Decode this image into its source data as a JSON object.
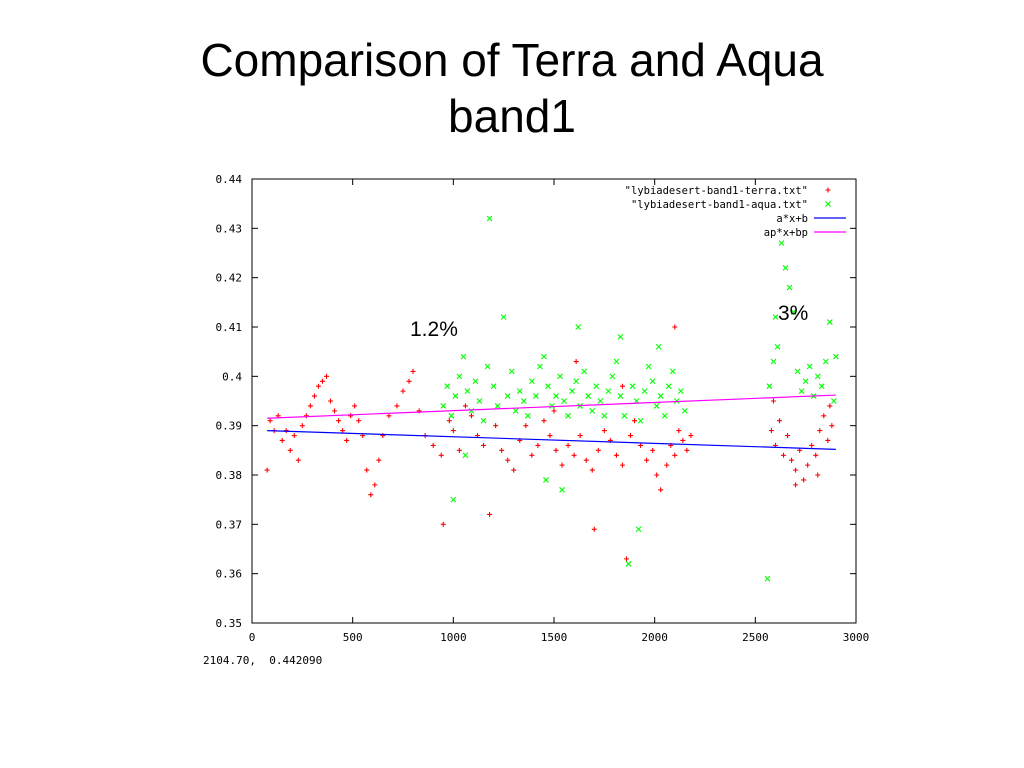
{
  "slide": {
    "title_line1": "Comparison of Terra and Aqua",
    "title_line2": "band1",
    "annotation_left": "1.2%",
    "annotation_right": "3%",
    "status_readout": "2104.70,  0.442090"
  },
  "colors": {
    "terra": "#ff0000",
    "aqua": "#00ff00",
    "fit_terra": "#0000ff",
    "fit_aqua": "#ff00ff",
    "axis": "#000000"
  },
  "chart_data": {
    "type": "scatter",
    "title": "",
    "xlabel": "",
    "ylabel": "",
    "xlim": [
      0,
      3000
    ],
    "ylim": [
      0.35,
      0.44
    ],
    "x_ticks": [
      0,
      500,
      1000,
      1500,
      2000,
      2500,
      3000
    ],
    "y_ticks": [
      0.35,
      0.36,
      0.37,
      0.38,
      0.39,
      0.4,
      0.41,
      0.42,
      0.43,
      0.44
    ],
    "x_tick_labels": [
      "0",
      "500",
      "1000",
      "1500",
      "2000",
      "2500",
      "3000"
    ],
    "y_tick_labels": [
      "0.35",
      "0.36",
      "0.37",
      "0.38",
      "0.39",
      "0.4",
      "0.41",
      "0.42",
      "0.43",
      "0.44"
    ],
    "grid": false,
    "legend_position": "top-right",
    "series": [
      {
        "name": "\"lybiadesert-band1-terra.txt\"",
        "marker": "+",
        "color": "#ff0000",
        "points": [
          [
            75,
            0.381
          ],
          [
            90,
            0.391
          ],
          [
            110,
            0.389
          ],
          [
            130,
            0.392
          ],
          [
            150,
            0.387
          ],
          [
            170,
            0.389
          ],
          [
            190,
            0.385
          ],
          [
            210,
            0.388
          ],
          [
            230,
            0.383
          ],
          [
            250,
            0.39
          ],
          [
            270,
            0.392
          ],
          [
            290,
            0.394
          ],
          [
            310,
            0.396
          ],
          [
            330,
            0.398
          ],
          [
            350,
            0.399
          ],
          [
            370,
            0.4
          ],
          [
            390,
            0.395
          ],
          [
            410,
            0.393
          ],
          [
            430,
            0.391
          ],
          [
            450,
            0.389
          ],
          [
            470,
            0.387
          ],
          [
            490,
            0.392
          ],
          [
            510,
            0.394
          ],
          [
            530,
            0.391
          ],
          [
            550,
            0.388
          ],
          [
            570,
            0.381
          ],
          [
            590,
            0.376
          ],
          [
            610,
            0.378
          ],
          [
            630,
            0.383
          ],
          [
            650,
            0.388
          ],
          [
            680,
            0.392
          ],
          [
            720,
            0.394
          ],
          [
            750,
            0.397
          ],
          [
            780,
            0.399
          ],
          [
            800,
            0.401
          ],
          [
            830,
            0.393
          ],
          [
            860,
            0.388
          ],
          [
            900,
            0.386
          ],
          [
            940,
            0.384
          ],
          [
            950,
            0.37
          ],
          [
            980,
            0.391
          ],
          [
            1000,
            0.389
          ],
          [
            1030,
            0.385
          ],
          [
            1060,
            0.394
          ],
          [
            1090,
            0.392
          ],
          [
            1120,
            0.388
          ],
          [
            1150,
            0.386
          ],
          [
            1180,
            0.372
          ],
          [
            1210,
            0.39
          ],
          [
            1240,
            0.385
          ],
          [
            1270,
            0.383
          ],
          [
            1300,
            0.381
          ],
          [
            1330,
            0.387
          ],
          [
            1360,
            0.39
          ],
          [
            1390,
            0.384
          ],
          [
            1420,
            0.386
          ],
          [
            1450,
            0.391
          ],
          [
            1480,
            0.388
          ],
          [
            1510,
            0.385
          ],
          [
            1540,
            0.382
          ],
          [
            1570,
            0.386
          ],
          [
            1600,
            0.384
          ],
          [
            1630,
            0.388
          ],
          [
            1660,
            0.383
          ],
          [
            1690,
            0.381
          ],
          [
            1700,
            0.369
          ],
          [
            1720,
            0.385
          ],
          [
            1750,
            0.389
          ],
          [
            1780,
            0.387
          ],
          [
            1810,
            0.384
          ],
          [
            1840,
            0.382
          ],
          [
            1860,
            0.363
          ],
          [
            1880,
            0.388
          ],
          [
            1900,
            0.391
          ],
          [
            1930,
            0.386
          ],
          [
            1960,
            0.383
          ],
          [
            1990,
            0.385
          ],
          [
            2010,
            0.38
          ],
          [
            2030,
            0.377
          ],
          [
            2060,
            0.382
          ],
          [
            2080,
            0.386
          ],
          [
            2100,
            0.384
          ],
          [
            2120,
            0.389
          ],
          [
            2140,
            0.387
          ],
          [
            2160,
            0.385
          ],
          [
            2180,
            0.388
          ],
          [
            2100,
            0.41
          ],
          [
            1840,
            0.398
          ],
          [
            1610,
            0.403
          ],
          [
            1500,
            0.393
          ],
          [
            2580,
            0.389
          ],
          [
            2600,
            0.386
          ],
          [
            2620,
            0.391
          ],
          [
            2640,
            0.384
          ],
          [
            2660,
            0.388
          ],
          [
            2680,
            0.383
          ],
          [
            2700,
            0.381
          ],
          [
            2720,
            0.385
          ],
          [
            2740,
            0.379
          ],
          [
            2760,
            0.382
          ],
          [
            2780,
            0.386
          ],
          [
            2800,
            0.384
          ],
          [
            2820,
            0.389
          ],
          [
            2840,
            0.392
          ],
          [
            2860,
            0.387
          ],
          [
            2880,
            0.39
          ],
          [
            2590,
            0.395
          ],
          [
            2700,
            0.378
          ],
          [
            2810,
            0.38
          ],
          [
            2870,
            0.394
          ]
        ]
      },
      {
        "name": "\"lybiadesert-band1-aqua.txt\"",
        "marker": "x",
        "color": "#00ff00",
        "points": [
          [
            950,
            0.394
          ],
          [
            970,
            0.398
          ],
          [
            990,
            0.392
          ],
          [
            1010,
            0.396
          ],
          [
            1030,
            0.4
          ],
          [
            1050,
            0.404
          ],
          [
            1070,
            0.397
          ],
          [
            1090,
            0.393
          ],
          [
            1110,
            0.399
          ],
          [
            1130,
            0.395
          ],
          [
            1150,
            0.391
          ],
          [
            1170,
            0.402
          ],
          [
            1180,
            0.432
          ],
          [
            1200,
            0.398
          ],
          [
            1220,
            0.394
          ],
          [
            1250,
            0.412
          ],
          [
            1270,
            0.396
          ],
          [
            1290,
            0.401
          ],
          [
            1310,
            0.393
          ],
          [
            1330,
            0.397
          ],
          [
            1350,
            0.395
          ],
          [
            1370,
            0.392
          ],
          [
            1390,
            0.399
          ],
          [
            1410,
            0.396
          ],
          [
            1430,
            0.402
          ],
          [
            1450,
            0.404
          ],
          [
            1470,
            0.398
          ],
          [
            1490,
            0.394
          ],
          [
            1510,
            0.396
          ],
          [
            1530,
            0.4
          ],
          [
            1550,
            0.395
          ],
          [
            1570,
            0.392
          ],
          [
            1590,
            0.397
          ],
          [
            1610,
            0.399
          ],
          [
            1630,
            0.394
          ],
          [
            1650,
            0.401
          ],
          [
            1670,
            0.396
          ],
          [
            1690,
            0.393
          ],
          [
            1710,
            0.398
          ],
          [
            1730,
            0.395
          ],
          [
            1750,
            0.392
          ],
          [
            1770,
            0.397
          ],
          [
            1790,
            0.4
          ],
          [
            1810,
            0.403
          ],
          [
            1830,
            0.396
          ],
          [
            1850,
            0.392
          ],
          [
            1870,
            0.362
          ],
          [
            1890,
            0.398
          ],
          [
            1910,
            0.395
          ],
          [
            1930,
            0.391
          ],
          [
            1950,
            0.397
          ],
          [
            1970,
            0.402
          ],
          [
            1990,
            0.399
          ],
          [
            2010,
            0.394
          ],
          [
            2030,
            0.396
          ],
          [
            2050,
            0.392
          ],
          [
            2070,
            0.398
          ],
          [
            2090,
            0.401
          ],
          [
            2110,
            0.395
          ],
          [
            2130,
            0.397
          ],
          [
            2150,
            0.393
          ],
          [
            1000,
            0.375
          ],
          [
            1060,
            0.384
          ],
          [
            1460,
            0.379
          ],
          [
            1540,
            0.377
          ],
          [
            1920,
            0.369
          ],
          [
            2020,
            0.406
          ],
          [
            1620,
            0.41
          ],
          [
            1830,
            0.408
          ],
          [
            2560,
            0.359
          ],
          [
            2570,
            0.398
          ],
          [
            2590,
            0.403
          ],
          [
            2610,
            0.406
          ],
          [
            2630,
            0.427
          ],
          [
            2650,
            0.422
          ],
          [
            2670,
            0.418
          ],
          [
            2690,
            0.413
          ],
          [
            2710,
            0.401
          ],
          [
            2730,
            0.397
          ],
          [
            2750,
            0.399
          ],
          [
            2770,
            0.402
          ],
          [
            2790,
            0.396
          ],
          [
            2810,
            0.4
          ],
          [
            2830,
            0.398
          ],
          [
            2850,
            0.403
          ],
          [
            2870,
            0.411
          ],
          [
            2890,
            0.395
          ],
          [
            2900,
            0.404
          ],
          [
            2600,
            0.412
          ]
        ]
      },
      {
        "name": "a*x+b",
        "type": "line",
        "color": "#0000ff",
        "points": [
          [
            75,
            0.389
          ],
          [
            2900,
            0.3852
          ]
        ]
      },
      {
        "name": "ap*x+bp",
        "type": "line",
        "color": "#ff00ff",
        "points": [
          [
            75,
            0.3915
          ],
          [
            2900,
            0.3962
          ]
        ]
      }
    ]
  }
}
